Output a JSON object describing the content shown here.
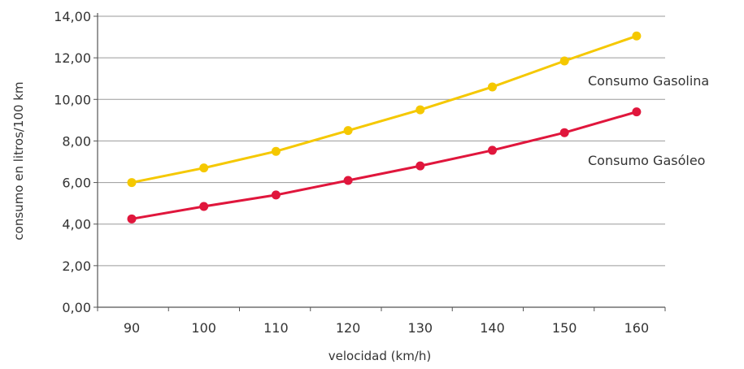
{
  "chart_data": {
    "type": "line",
    "title": "",
    "xlabel": "velocidad (km/h)",
    "ylabel": "consumo en litros/100 km",
    "categories": [
      "90",
      "100",
      "110",
      "120",
      "130",
      "140",
      "150",
      "160"
    ],
    "yticks": [
      "0,00",
      "2,00",
      "4,00",
      "6,00",
      "8,00",
      "10,00",
      "12,00",
      "14,00"
    ],
    "ylim": [
      0,
      14
    ],
    "grid": "horizontal",
    "series": [
      {
        "name": "Consumo Gasolina",
        "color": "#f5c800",
        "values": [
          6.0,
          6.7,
          7.5,
          8.5,
          9.5,
          10.6,
          11.85,
          13.05
        ]
      },
      {
        "name": "Consumo Gasóleo",
        "color": "#e0163c",
        "values": [
          4.25,
          4.85,
          5.4,
          6.1,
          6.8,
          7.55,
          8.4,
          9.4
        ]
      }
    ]
  }
}
